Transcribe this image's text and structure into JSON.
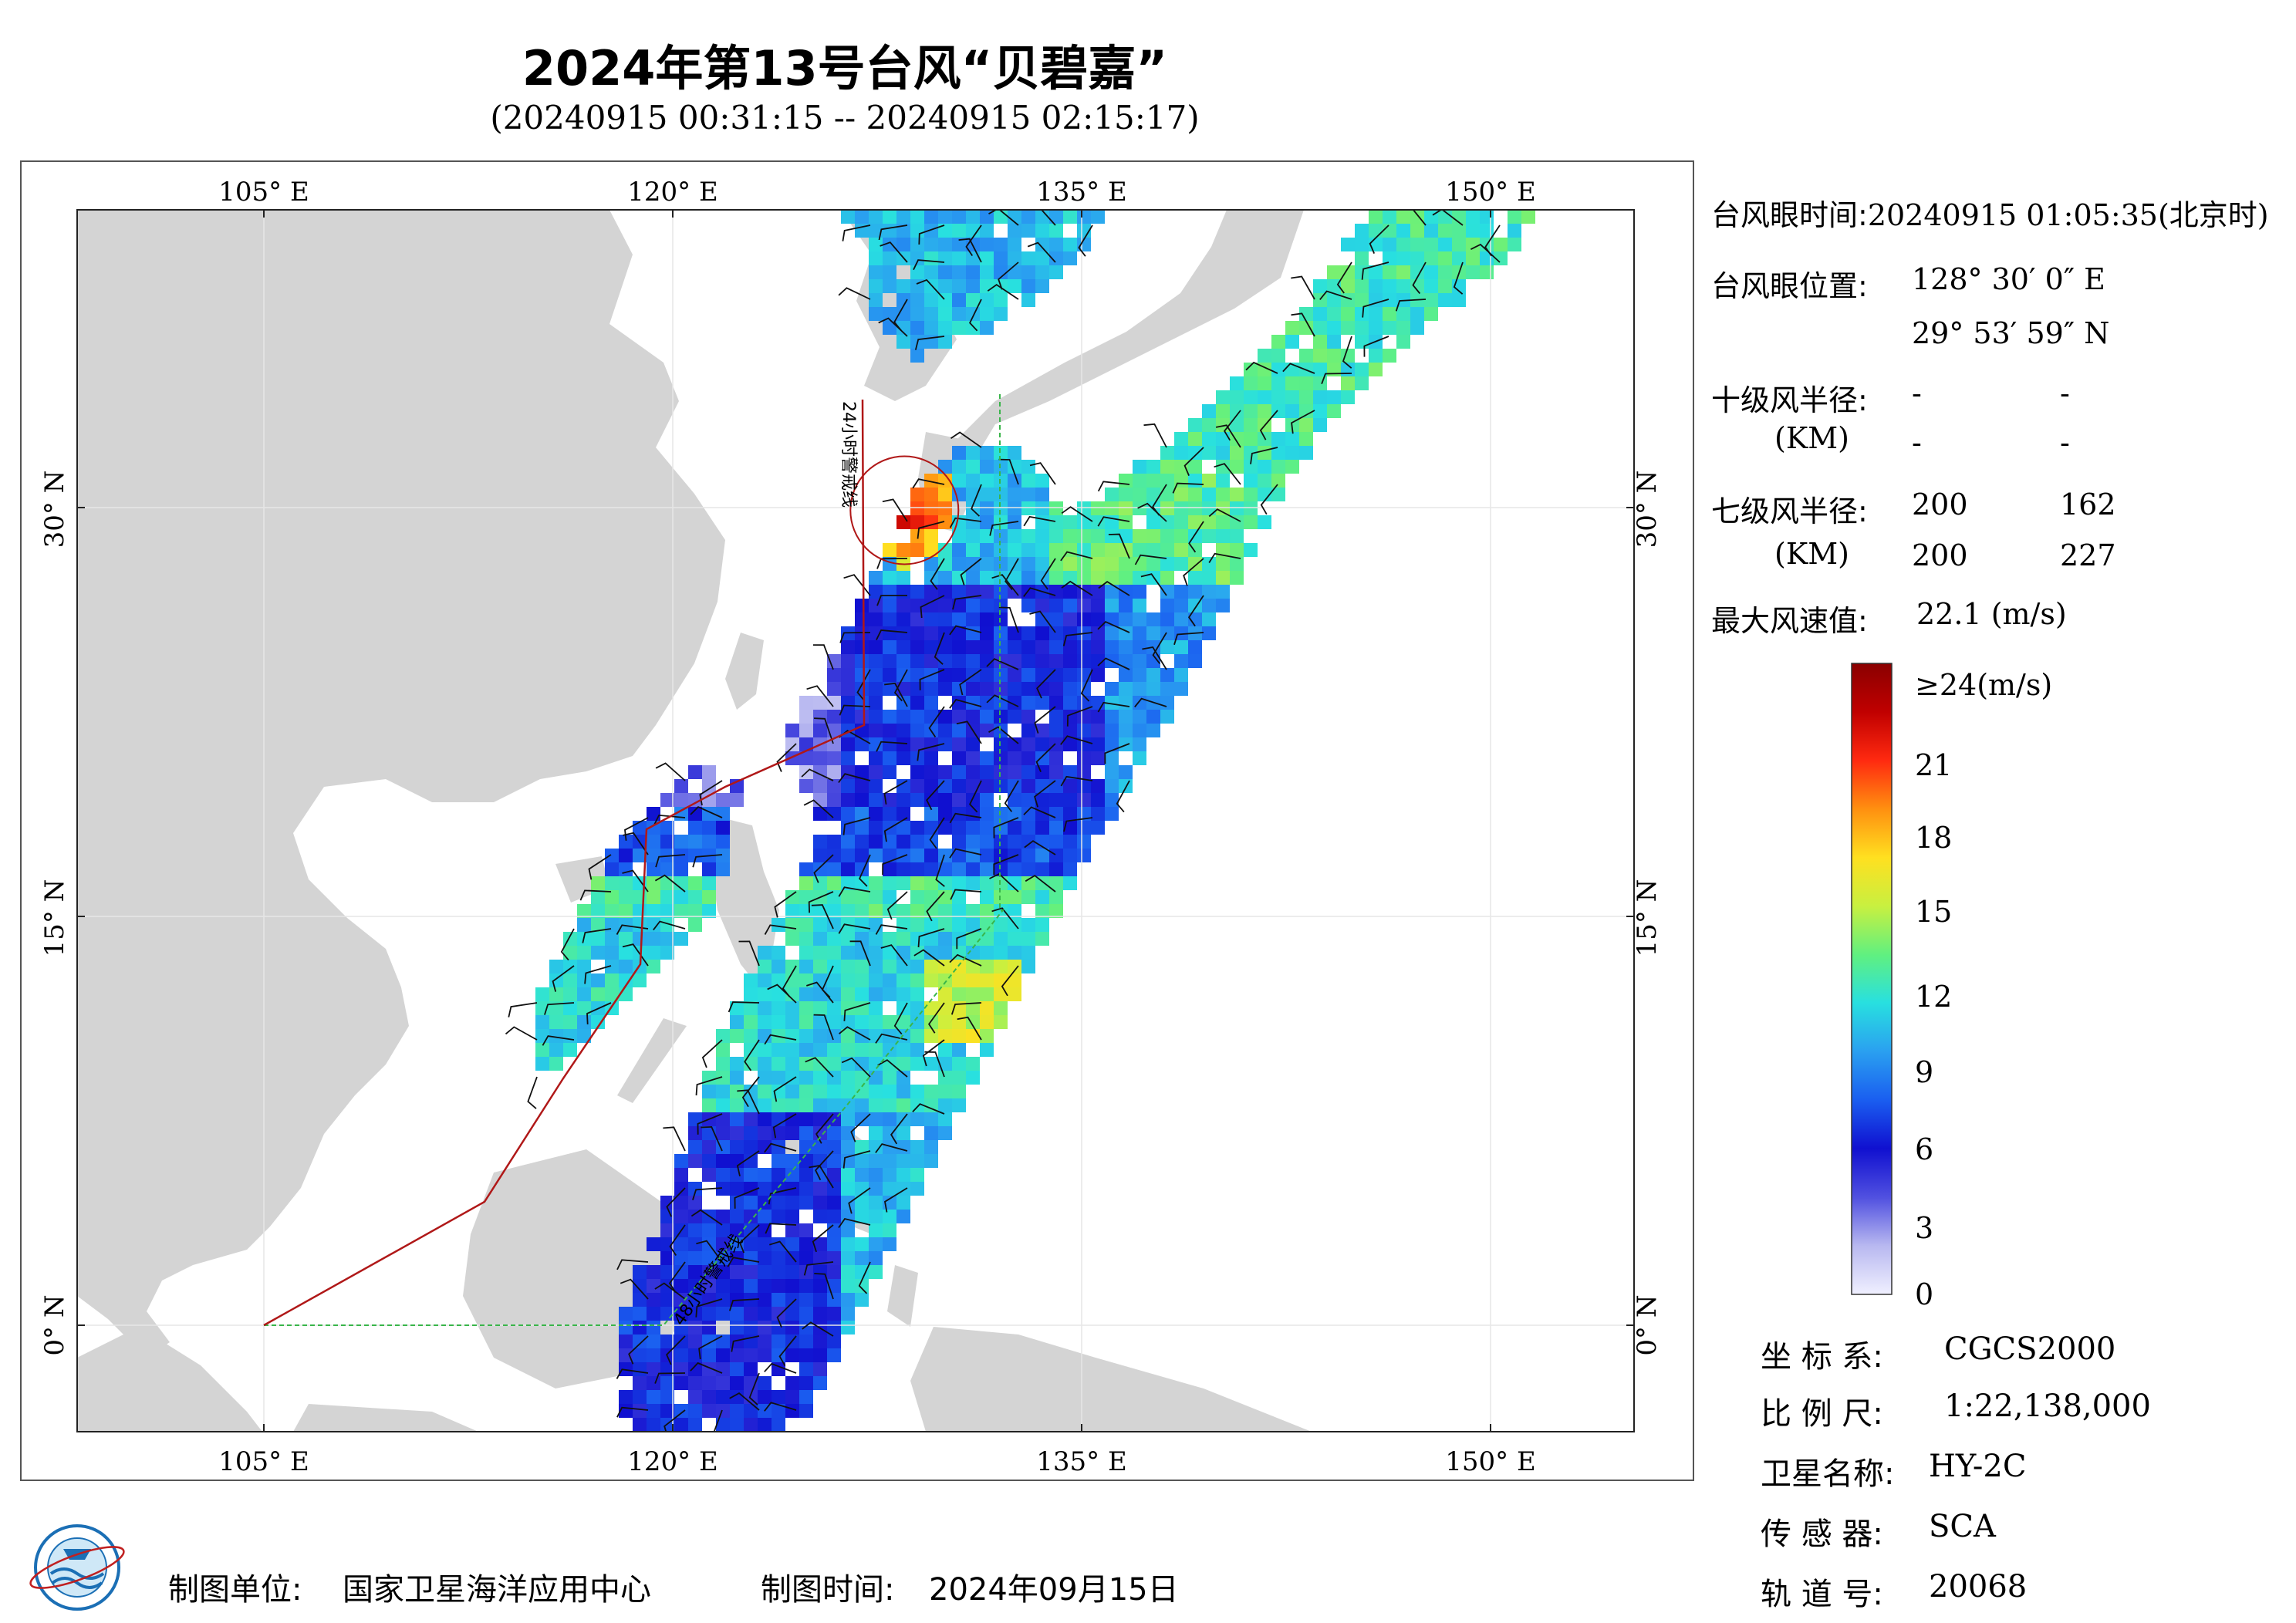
{
  "title": "2024年第13号台风“贝碧嘉”",
  "subtitle": "(20240915 00:31:15 -- 20240915 02:15:17)",
  "map": {
    "lon_labels": [
      "105° E",
      "120° E",
      "135° E",
      "150° E"
    ],
    "lat_labels": [
      "30° N",
      "15° N",
      "0° N"
    ],
    "line_label_north": "24小时警戒线",
    "line_label_south": "48小时警戒线",
    "typhoon_eye": {
      "lon": 128.5,
      "lat": 29.9
    },
    "colors": {
      "land": "#d4d4d4",
      "sea": "#ffffff",
      "warning_24h": "#b01818",
      "warning_48h": "#39b54a"
    }
  },
  "info": {
    "eye_time_label": "台风眼时间:",
    "eye_time_value": "20240915 01:05:35(北京时)",
    "eye_pos_label": "台风眼位置:",
    "eye_lon": "128° 30′ 0″ E",
    "eye_lat": "29° 53′ 59″ N",
    "r10_label": "十级风半径:",
    "r10_unit": "(KM)",
    "r10_values": [
      "-",
      "-",
      "-",
      "-"
    ],
    "r7_label": "七级风半径:",
    "r7_unit": "(KM)",
    "r7_values": [
      "200",
      "162",
      "200",
      "227"
    ],
    "max_wind_label": "最大风速值:",
    "max_wind_value": "22.1  (m/s)"
  },
  "colorbar": {
    "labels": [
      "≥24(m/s)",
      "21",
      "18",
      "15",
      "12",
      "9",
      "6",
      "3",
      "0"
    ],
    "stops": [
      "#f0f0ff",
      "#b8b8f0",
      "#5050e0",
      "#1010d0",
      "#1a5ef0",
      "#2aa0f0",
      "#28e0e0",
      "#60f080",
      "#c8f040",
      "#ffe020",
      "#ff9010",
      "#ff2a10",
      "#c00000",
      "#8a0000"
    ]
  },
  "meta": {
    "crs_label": "坐 标 系:",
    "crs_value": "CGCS2000",
    "scale_label": "比 例 尺:",
    "scale_value": "1:22,138,000",
    "sat_label": "卫星名称:",
    "sat_value": "HY-2C",
    "sensor_label": "传 感 器:",
    "sensor_value": "SCA",
    "orbit_label": "轨 道 号:",
    "orbit_value": "20068"
  },
  "footer": {
    "org_label": "制图单位:",
    "org_value": "国家卫星海洋应用中心",
    "date_label": "制图时间:",
    "date_value": "2024年09月15日"
  }
}
